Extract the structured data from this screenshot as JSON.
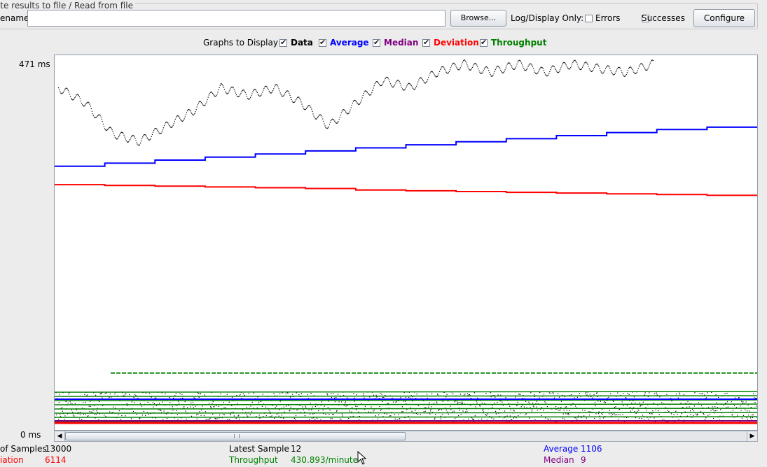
{
  "file_panel": {
    "title": "rite results to file / Read from file",
    "filename_label": "ename",
    "filename_value": "",
    "browse_label": "Browse...",
    "log_display_label": "Log/Display Only:",
    "errors_label": "Errors",
    "successes_label": "Successes",
    "configure_label": "Configure"
  },
  "legend": {
    "title": "Graphs to Display",
    "items": [
      {
        "label": "Data",
        "color": "#000000",
        "checked": true
      },
      {
        "label": "Average",
        "color": "#0000ff",
        "checked": true
      },
      {
        "label": "Median",
        "color": "#800080",
        "checked": true
      },
      {
        "label": "Deviation",
        "color": "#ff0000",
        "checked": true
      },
      {
        "label": "Throughput",
        "color": "#008000",
        "checked": true
      }
    ]
  },
  "axis": {
    "y_max_label": "471  ms",
    "y_min_label": "0  ms"
  },
  "stats": {
    "samples_label": "of Samples",
    "samples_value": "13000",
    "deviation_label": "iation",
    "deviation_value": "6114",
    "latest_label": "Latest Sample",
    "latest_value": "12",
    "throughput_label": "Throughput",
    "throughput_value": "430.893/minute",
    "average_label": "Average",
    "average_value": "1106",
    "median_label": "Median",
    "median_value": "9"
  },
  "chart_data": {
    "type": "line",
    "ylim": [
      0,
      471
    ],
    "series": [
      {
        "name": "Average",
        "color": "#0000ff",
        "values": [
          337,
          341,
          345,
          349,
          353,
          357,
          361,
          365,
          369,
          373,
          377,
          381,
          385,
          388
        ]
      },
      {
        "name": "Deviation",
        "color": "#ff0000",
        "values": [
          313,
          312,
          311,
          310,
          309,
          308,
          306,
          305,
          304,
          303,
          302,
          301,
          300,
          299
        ]
      },
      {
        "name": "Data",
        "color": "#000000",
        "values": [
          440,
          420,
          380,
          370,
          390,
          410,
          440,
          430,
          440,
          420,
          390,
          420,
          450,
          440,
          460,
          471,
          460,
          471,
          460,
          471,
          465,
          460,
          471
        ]
      },
      {
        "name": "Throughput",
        "color": "#008000",
        "values": [
          67,
          67,
          67,
          67,
          67,
          67,
          67,
          67
        ]
      }
    ]
  }
}
